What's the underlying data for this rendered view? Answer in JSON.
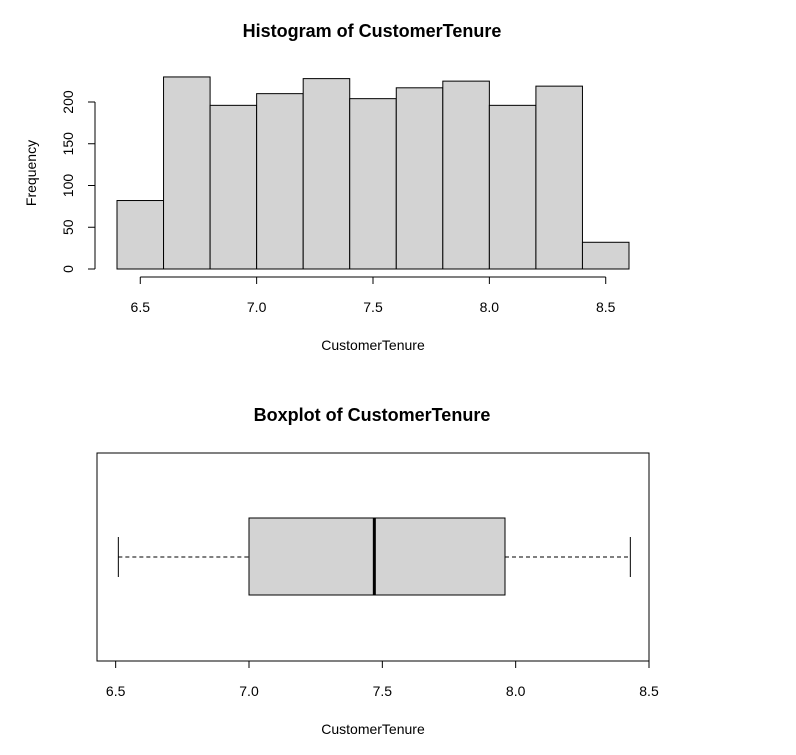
{
  "chart_data": [
    {
      "type": "bar",
      "title": "Histogram of CustomerTenure",
      "xlabel": "CustomerTenure",
      "ylabel": "Frequency",
      "bins": [
        [
          6.4,
          6.6
        ],
        [
          6.6,
          6.8
        ],
        [
          6.8,
          7.0
        ],
        [
          7.0,
          7.2
        ],
        [
          7.2,
          7.4
        ],
        [
          7.4,
          7.6
        ],
        [
          7.6,
          7.8
        ],
        [
          7.8,
          8.0
        ],
        [
          8.0,
          8.2
        ],
        [
          8.2,
          8.4
        ],
        [
          8.4,
          8.6
        ]
      ],
      "values": [
        82,
        230,
        196,
        210,
        228,
        204,
        217,
        225,
        196,
        219,
        32
      ],
      "xticks": [
        "6.5",
        "7.0",
        "7.5",
        "8.0",
        "8.5"
      ],
      "xtick_values": [
        6.5,
        7.0,
        7.5,
        8.0,
        8.5
      ],
      "yticks": [
        "0",
        "50",
        "100",
        "150",
        "200"
      ],
      "ytick_values": [
        0,
        50,
        100,
        150,
        200
      ],
      "xlim": [
        6.4,
        8.6
      ],
      "ylim": [
        0,
        230
      ],
      "bar_color": "#d3d3d3"
    },
    {
      "type": "boxplot",
      "title": "Boxplot of CustomerTenure",
      "xlabel": "CustomerTenure",
      "stats": {
        "whisker_low": 6.51,
        "q1": 7.0,
        "median": 7.47,
        "q3": 7.96,
        "whisker_high": 8.43
      },
      "xticks": [
        "6.5",
        "7.0",
        "7.5",
        "8.0",
        "8.5"
      ],
      "xtick_values": [
        6.5,
        7.0,
        7.5,
        8.0,
        8.5
      ],
      "xlim": [
        6.43,
        8.5
      ],
      "box_color": "#d3d3d3"
    }
  ]
}
